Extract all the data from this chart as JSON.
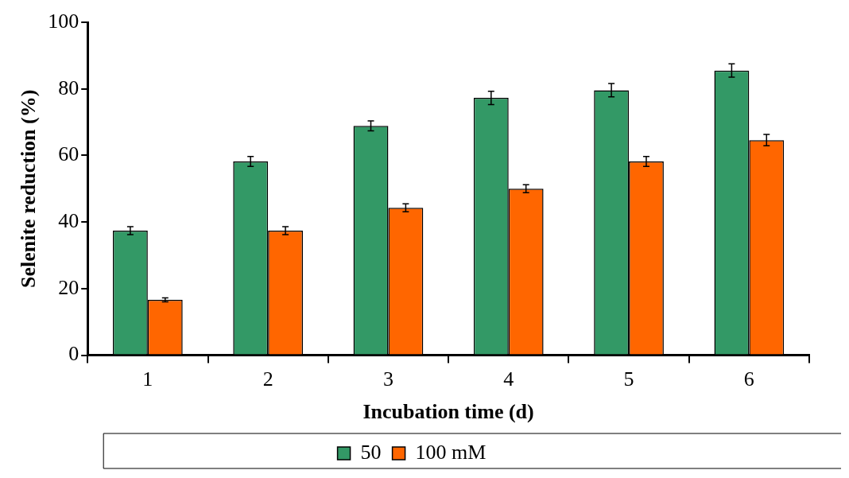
{
  "chart_data": {
    "type": "bar",
    "xlabel": "Incubation time (d)",
    "ylabel": "Selenite reduction (%)",
    "categories": [
      "1",
      "2",
      "3",
      "4",
      "5",
      "6"
    ],
    "series": [
      {
        "name": "50",
        "color": "#339966",
        "values": [
          37.4,
          58.2,
          68.9,
          77.3,
          79.6,
          85.5
        ],
        "errors": [
          1.2,
          1.5,
          1.5,
          2,
          2,
          2
        ]
      },
      {
        "name": "100 mM",
        "color": "#ff6600",
        "values": [
          16.6,
          37.4,
          44.3,
          50,
          58.2,
          64.6
        ],
        "errors": [
          0.6,
          1.2,
          1.2,
          1.2,
          1.5,
          1.7
        ]
      }
    ],
    "ylim": [
      0,
      100
    ],
    "yticks": [
      0,
      20,
      40,
      60,
      80,
      100
    ],
    "grid": false,
    "legend": "bottom"
  }
}
